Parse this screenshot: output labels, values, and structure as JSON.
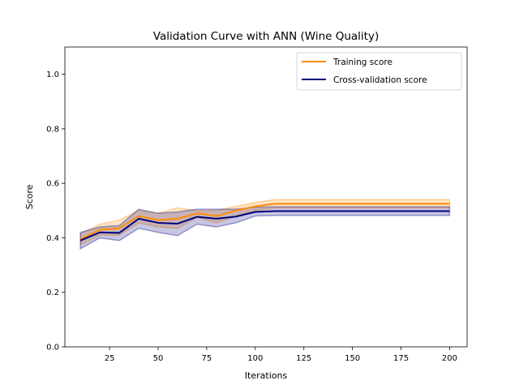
{
  "chart_data": {
    "type": "line",
    "title": "Validation Curve with ANN (Wine Quality)",
    "xlabel": "Iterations",
    "ylabel": "Score",
    "xlim": [
      2,
      209
    ],
    "ylim": [
      0.0,
      1.1
    ],
    "xticks": [
      25,
      50,
      75,
      100,
      125,
      150,
      175,
      200
    ],
    "yticks": [
      0.0,
      0.2,
      0.4,
      0.6,
      0.8,
      1.0
    ],
    "ytick_labels": [
      "0.0",
      "0.2",
      "0.4",
      "0.6",
      "0.8",
      "1.0"
    ],
    "grid": false,
    "legend_position": "top-right",
    "x": [
      10,
      20,
      30,
      40,
      50,
      60,
      70,
      80,
      90,
      100,
      110,
      120,
      130,
      140,
      150,
      160,
      170,
      180,
      190,
      200
    ],
    "series": [
      {
        "name": "Training score",
        "color": "#ff8c00",
        "values": [
          0.395,
          0.43,
          0.435,
          0.48,
          0.465,
          0.47,
          0.49,
          0.48,
          0.5,
          0.515,
          0.525,
          0.525,
          0.525,
          0.525,
          0.525,
          0.525,
          0.525,
          0.525,
          0.525,
          0.525
        ],
        "band_lower": [
          0.375,
          0.41,
          0.41,
          0.455,
          0.44,
          0.435,
          0.475,
          0.455,
          0.48,
          0.5,
          0.51,
          0.51,
          0.51,
          0.51,
          0.51,
          0.51,
          0.51,
          0.51,
          0.51,
          0.51
        ],
        "band_upper": [
          0.415,
          0.45,
          0.465,
          0.5,
          0.49,
          0.51,
          0.5,
          0.5,
          0.515,
          0.53,
          0.54,
          0.54,
          0.54,
          0.54,
          0.54,
          0.54,
          0.54,
          0.54,
          0.54,
          0.54
        ]
      },
      {
        "name": "Cross-validation score",
        "color": "#000080",
        "values": [
          0.39,
          0.42,
          0.418,
          0.47,
          0.455,
          0.452,
          0.477,
          0.47,
          0.478,
          0.495,
          0.498,
          0.498,
          0.498,
          0.498,
          0.498,
          0.498,
          0.498,
          0.498,
          0.498,
          0.498
        ],
        "band_lower": [
          0.36,
          0.4,
          0.39,
          0.435,
          0.42,
          0.408,
          0.45,
          0.44,
          0.455,
          0.48,
          0.482,
          0.482,
          0.482,
          0.482,
          0.482,
          0.482,
          0.482,
          0.482,
          0.482,
          0.482
        ],
        "band_upper": [
          0.42,
          0.44,
          0.445,
          0.505,
          0.49,
          0.495,
          0.505,
          0.505,
          0.505,
          0.512,
          0.514,
          0.514,
          0.514,
          0.514,
          0.514,
          0.514,
          0.514,
          0.514,
          0.514,
          0.514
        ]
      }
    ]
  }
}
